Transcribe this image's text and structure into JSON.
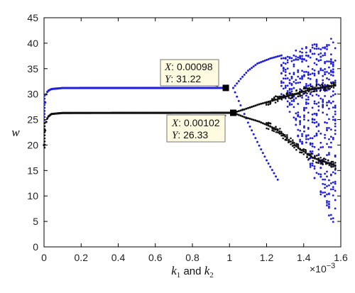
{
  "chart_data": {
    "type": "scatter",
    "title": "",
    "xlabel": "k1 and k2",
    "xlabel_parts": {
      "k1": "k",
      "sub1": "1",
      "and": "and",
      "k2": "k",
      "sub2": "2"
    },
    "ylabel": "w",
    "x_scale_label": "×10",
    "x_scale_exp": "−3",
    "xlim": [
      0,
      1.6
    ],
    "ylim": [
      0,
      45
    ],
    "x_ticks": [
      0,
      0.2,
      0.4,
      0.6,
      0.8,
      1,
      1.2,
      1.4,
      1.6
    ],
    "x_tick_labels": [
      "0",
      "0.2",
      "0.4",
      "0.6",
      "0.8",
      "1",
      "1.2",
      "1.4",
      "1.6"
    ],
    "y_ticks": [
      0,
      5,
      10,
      15,
      20,
      25,
      30,
      35,
      40,
      45
    ],
    "y_tick_labels": [
      "0",
      "5",
      "10",
      "15",
      "20",
      "25",
      "30",
      "35",
      "40",
      "45"
    ],
    "grid": false,
    "legend": "none",
    "colors": {
      "series_blue": "#1f1fdc",
      "series_black": "#111111",
      "datatip_bg": "#fffbe0",
      "datatip_border": "#777777"
    },
    "series": [
      {
        "color": "#1f1fdc",
        "stable_branch": [
          [
            0.0,
            20.0
          ],
          [
            0.005,
            28.0
          ],
          [
            0.01,
            29.8
          ],
          [
            0.02,
            30.6
          ],
          [
            0.04,
            31.0
          ],
          [
            0.1,
            31.2
          ],
          [
            0.98,
            31.22
          ]
        ],
        "bifurcation_point": [
          1.02,
          31.2
        ],
        "branch_upper": [
          [
            1.02,
            31.2
          ],
          [
            1.06,
            33.0
          ],
          [
            1.1,
            34.6
          ],
          [
            1.15,
            36.0
          ],
          [
            1.22,
            37.0
          ],
          [
            1.28,
            37.6
          ]
        ],
        "branch_lower": [
          [
            1.02,
            31.2
          ],
          [
            1.06,
            27.8
          ],
          [
            1.1,
            24.4
          ],
          [
            1.15,
            20.6
          ],
          [
            1.2,
            17.0
          ],
          [
            1.26,
            13.2
          ]
        ],
        "chaotic_region": {
          "x_range": [
            1.28,
            1.57
          ],
          "y_range": [
            1,
            41.5
          ]
        }
      },
      {
        "color": "#111111",
        "stable_branch": [
          [
            0.0,
            20.0
          ],
          [
            0.005,
            22.5
          ],
          [
            0.01,
            24.3
          ],
          [
            0.02,
            25.5
          ],
          [
            0.04,
            26.1
          ],
          [
            0.1,
            26.3
          ],
          [
            1.02,
            26.33
          ]
        ],
        "bifurcation_point": [
          1.02,
          26.33
        ],
        "branch_upper": [
          [
            1.02,
            26.33
          ],
          [
            1.08,
            27.0
          ],
          [
            1.16,
            28.0
          ],
          [
            1.26,
            29.0
          ],
          [
            1.35,
            30.0
          ],
          [
            1.45,
            31.0
          ],
          [
            1.57,
            31.7
          ]
        ],
        "branch_lower": [
          [
            1.02,
            26.33
          ],
          [
            1.08,
            25.5
          ],
          [
            1.16,
            24.6
          ],
          [
            1.26,
            23.0
          ],
          [
            1.35,
            20.0
          ],
          [
            1.45,
            17.5
          ],
          [
            1.57,
            16.0
          ]
        ]
      }
    ],
    "datatips": [
      {
        "x_label": "X",
        "x_value": "0.00098",
        "y_label": "Y",
        "y_value": "31.22",
        "point": [
          0.98,
          31.22
        ]
      },
      {
        "x_label": "X",
        "x_value": "0.00102",
        "y_label": "Y",
        "y_value": "26.33",
        "point": [
          1.02,
          26.33
        ]
      }
    ]
  }
}
